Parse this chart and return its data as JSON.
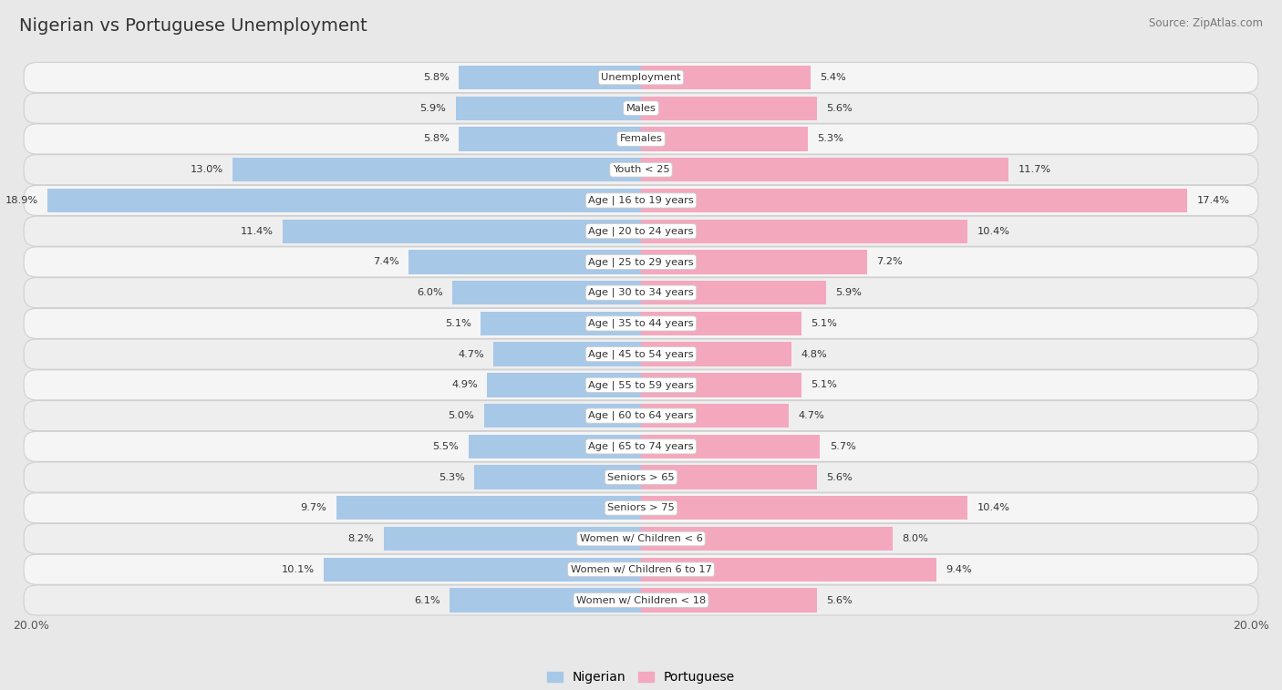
{
  "title": "Nigerian vs Portuguese Unemployment",
  "source": "Source: ZipAtlas.com",
  "categories": [
    "Unemployment",
    "Males",
    "Females",
    "Youth < 25",
    "Age | 16 to 19 years",
    "Age | 20 to 24 years",
    "Age | 25 to 29 years",
    "Age | 30 to 34 years",
    "Age | 35 to 44 years",
    "Age | 45 to 54 years",
    "Age | 55 to 59 years",
    "Age | 60 to 64 years",
    "Age | 65 to 74 years",
    "Seniors > 65",
    "Seniors > 75",
    "Women w/ Children < 6",
    "Women w/ Children 6 to 17",
    "Women w/ Children < 18"
  ],
  "nigerian": [
    5.8,
    5.9,
    5.8,
    13.0,
    18.9,
    11.4,
    7.4,
    6.0,
    5.1,
    4.7,
    4.9,
    5.0,
    5.5,
    5.3,
    9.7,
    8.2,
    10.1,
    6.1
  ],
  "portuguese": [
    5.4,
    5.6,
    5.3,
    11.7,
    17.4,
    10.4,
    7.2,
    5.9,
    5.1,
    4.8,
    5.1,
    4.7,
    5.7,
    5.6,
    10.4,
    8.0,
    9.4,
    5.6
  ],
  "nigerian_color": "#a8c8e8",
  "portuguese_color": "#f4a8be",
  "bg_color": "#e8e8e8",
  "row_bg_even": "#f5f5f5",
  "row_bg_odd": "#eeeeee",
  "max_val": 20.0,
  "legend_nigerian": "Nigerian",
  "legend_portuguese": "Portuguese"
}
